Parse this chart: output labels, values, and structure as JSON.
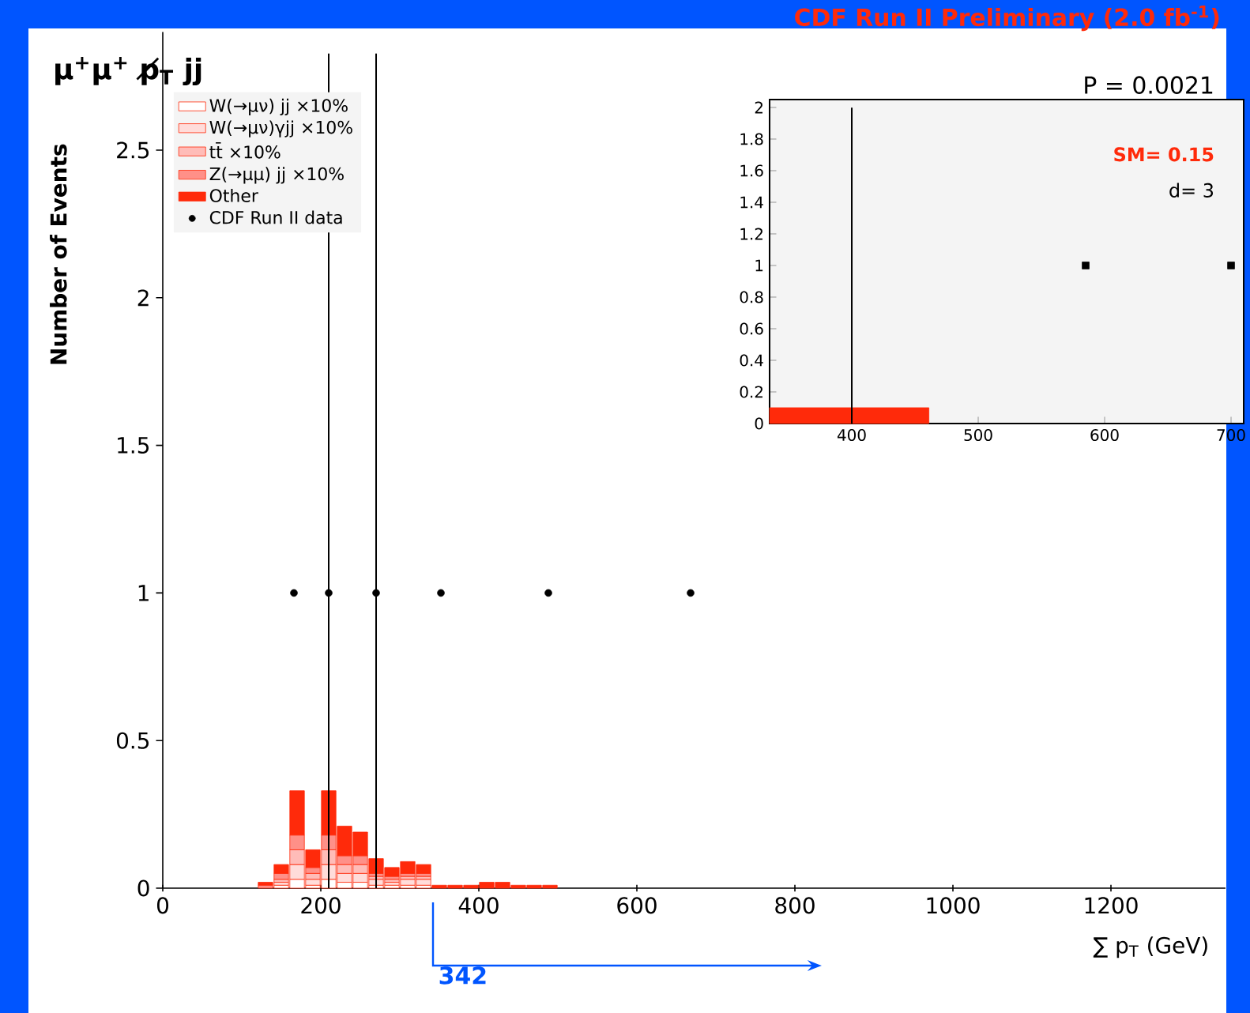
{
  "chart_data": [
    {
      "type": "bar",
      "title": "μ$^{+}$μ$^{+}$ p̸$_{T}$ jj",
      "subtitle": "CDF Run II Preliminary (2.0 fb$^{-1}$)",
      "xlabel": "∑ p$_{T}$ (GeV)",
      "ylabel": "Number of Events",
      "stacked": true,
      "x": [
        130,
        150,
        170,
        190,
        210,
        230,
        250,
        270,
        290,
        310,
        330,
        350,
        370,
        390,
        410,
        430,
        450,
        470,
        490
      ],
      "series": [
        {
          "name": "W(→μν) jj ×10%",
          "color": "#ffffff",
          "values": [
            0,
            0.01,
            0.03,
            0.01,
            0.03,
            0.02,
            0.02,
            0.01,
            0.01,
            0.01,
            0.01,
            0,
            0,
            0,
            0,
            0,
            0,
            0,
            0
          ]
        },
        {
          "name": "W(→μν)γjj ×10%",
          "color": "#ffdcda",
          "values": [
            0,
            0.01,
            0.05,
            0.02,
            0.05,
            0.03,
            0.03,
            0.02,
            0.01,
            0.02,
            0.02,
            0,
            0,
            0,
            0,
            0,
            0,
            0,
            0
          ]
        },
        {
          "name": "tt̄ ×10%",
          "color": "#ffbcb8",
          "values": [
            0,
            0.01,
            0.05,
            0.02,
            0.05,
            0.03,
            0.03,
            0.01,
            0.01,
            0.01,
            0.01,
            0,
            0,
            0,
            0,
            0,
            0,
            0,
            0
          ]
        },
        {
          "name": "Z(→μμ) jj ×10%",
          "color": "#ff9088",
          "values": [
            0.01,
            0.02,
            0.05,
            0.02,
            0.05,
            0.03,
            0.03,
            0.01,
            0.01,
            0.01,
            0.01,
            0,
            0,
            0,
            0,
            0,
            0,
            0,
            0
          ]
        },
        {
          "name": "Other",
          "color": "#ff2a0a",
          "values": [
            0.01,
            0.03,
            0.15,
            0.06,
            0.15,
            0.1,
            0.08,
            0.05,
            0.03,
            0.04,
            0.03,
            0.01,
            0.01,
            0.01,
            0.02,
            0.02,
            0.01,
            0.01,
            0.01
          ]
        },
        {
          "name": "CDF Run II data",
          "type": "scatter",
          "color": "#000000",
          "marker": "circle",
          "x": [
            166,
            210,
            270,
            352,
            488,
            668
          ],
          "values": [
            1,
            1,
            1,
            1,
            1,
            1
          ]
        }
      ],
      "xlim": [
        0,
        1345
      ],
      "ylim": [
        0,
        2.9
      ],
      "xticks": [
        0,
        200,
        400,
        600,
        800,
        1000,
        1200
      ],
      "yticks": [
        0,
        0.5,
        1,
        1.5,
        2,
        2.5
      ],
      "legend": "top left",
      "grid": false,
      "ref_lines": [
        {
          "axis": "x",
          "value": 210,
          "color": "#000000"
        },
        {
          "axis": "x",
          "value": 270,
          "color": "#000000"
        }
      ],
      "annotations": [
        "342"
      ]
    },
    {
      "type": "histogram",
      "bins": [
        335,
        461
      ],
      "series": [
        {
          "color": "#ff2a0a",
          "values": [
            0.1
          ]
        },
        {
          "type": "scatter",
          "color": "#000000",
          "marker": "square",
          "x": [
            585,
            700
          ],
          "values": [
            1,
            1
          ]
        }
      ],
      "xlim": [
        335,
        710
      ],
      "ylim": [
        0,
        2.05
      ],
      "xticks": [
        400,
        500,
        600,
        700
      ],
      "yticks": [
        0,
        0.2,
        0.4,
        0.6,
        0.8,
        1,
        1.2,
        1.4,
        1.6,
        1.8,
        2
      ],
      "ref_lines": [
        {
          "axis": "x",
          "value": 400,
          "color": "#000000"
        }
      ],
      "annotations": [
        "P = 0.0021",
        "SM= 0.15",
        "d= 3"
      ]
    }
  ]
}
